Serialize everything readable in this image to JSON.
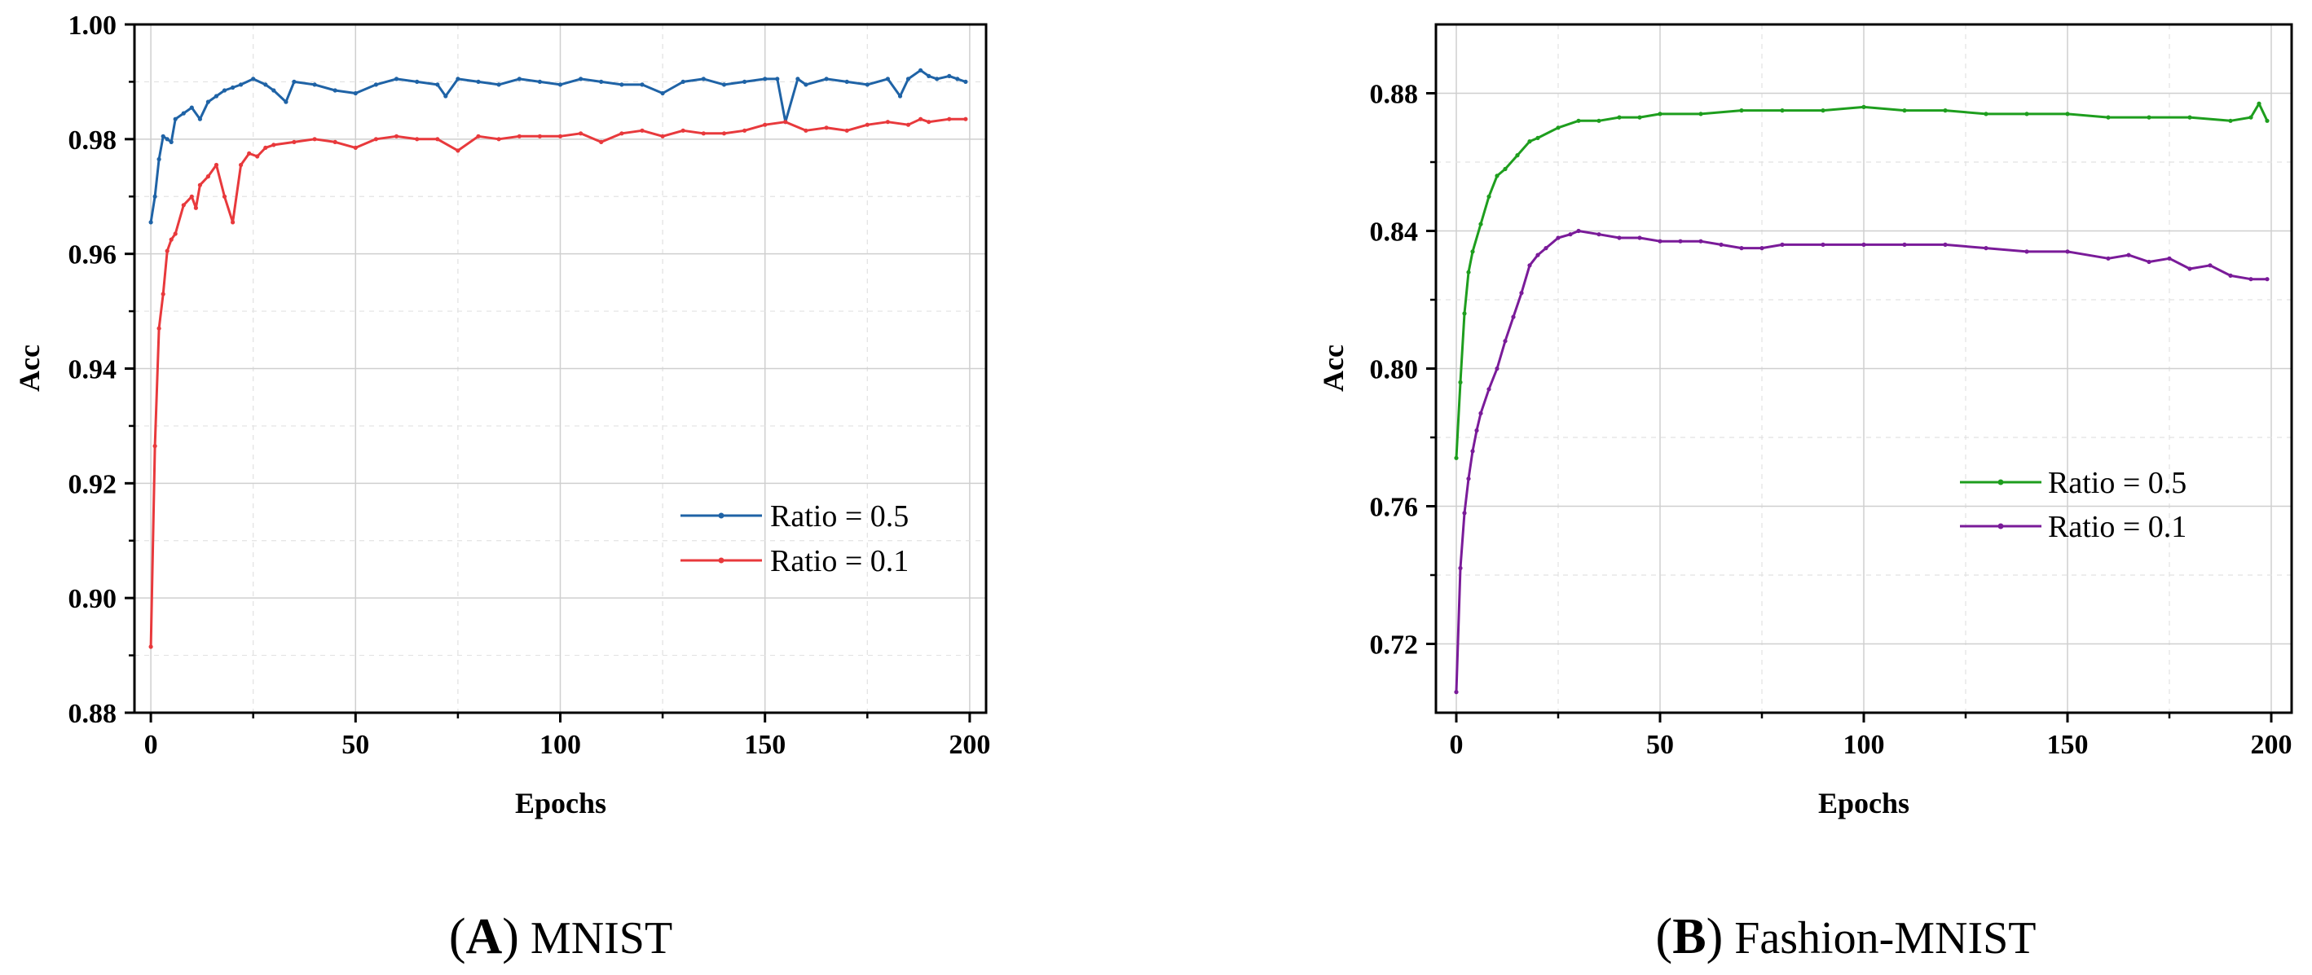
{
  "chart_data": [
    {
      "type": "line",
      "caption_letter": "A",
      "caption_text": "MNIST",
      "xlabel": "Epochs",
      "ylabel": "Acc",
      "xlim": [
        -4,
        204
      ],
      "ylim": [
        0.88,
        1.0
      ],
      "xticks": [
        "0",
        "50",
        "100",
        "150",
        "200"
      ],
      "yticks": [
        "0.88",
        "0.90",
        "0.92",
        "0.94",
        "0.96",
        "0.98",
        "1.00"
      ],
      "legend_position": "center-right",
      "series": [
        {
          "name": "Ratio = 0.5",
          "color": "#1f63a6",
          "points": [
            [
              0,
              0.9655
            ],
            [
              1,
              0.97
            ],
            [
              2,
              0.9765
            ],
            [
              3,
              0.9805
            ],
            [
              4,
              0.98
            ],
            [
              5,
              0.9795
            ],
            [
              6,
              0.9835
            ],
            [
              8,
              0.9845
            ],
            [
              10,
              0.9855
            ],
            [
              12,
              0.9835
            ],
            [
              14,
              0.9865
            ],
            [
              16,
              0.9875
            ],
            [
              18,
              0.9885
            ],
            [
              20,
              0.989
            ],
            [
              22,
              0.9895
            ],
            [
              25,
              0.9905
            ],
            [
              28,
              0.9895
            ],
            [
              30,
              0.9885
            ],
            [
              33,
              0.9865
            ],
            [
              35,
              0.99
            ],
            [
              40,
              0.9895
            ],
            [
              45,
              0.9885
            ],
            [
              50,
              0.988
            ],
            [
              55,
              0.9895
            ],
            [
              60,
              0.9905
            ],
            [
              65,
              0.99
            ],
            [
              70,
              0.9895
            ],
            [
              72,
              0.9875
            ],
            [
              75,
              0.9905
            ],
            [
              80,
              0.99
            ],
            [
              85,
              0.9895
            ],
            [
              90,
              0.9905
            ],
            [
              95,
              0.99
            ],
            [
              100,
              0.9895
            ],
            [
              105,
              0.9905
            ],
            [
              110,
              0.99
            ],
            [
              115,
              0.9895
            ],
            [
              120,
              0.9895
            ],
            [
              125,
              0.988
            ],
            [
              130,
              0.99
            ],
            [
              135,
              0.9905
            ],
            [
              140,
              0.9895
            ],
            [
              145,
              0.99
            ],
            [
              150,
              0.9905
            ],
            [
              153,
              0.9905
            ],
            [
              155,
              0.983
            ],
            [
              158,
              0.9905
            ],
            [
              160,
              0.9895
            ],
            [
              165,
              0.9905
            ],
            [
              170,
              0.99
            ],
            [
              175,
              0.9895
            ],
            [
              180,
              0.9905
            ],
            [
              183,
              0.9875
            ],
            [
              185,
              0.9905
            ],
            [
              188,
              0.992
            ],
            [
              190,
              0.991
            ],
            [
              192,
              0.9905
            ],
            [
              195,
              0.991
            ],
            [
              197,
              0.9905
            ],
            [
              199,
              0.99
            ]
          ]
        },
        {
          "name": "Ratio = 0.1",
          "color": "#e8393c",
          "points": [
            [
              0,
              0.8915
            ],
            [
              1,
              0.9265
            ],
            [
              2,
              0.947
            ],
            [
              3,
              0.953
            ],
            [
              4,
              0.9605
            ],
            [
              5,
              0.9625
            ],
            [
              6,
              0.9635
            ],
            [
              8,
              0.9685
            ],
            [
              10,
              0.97
            ],
            [
              11,
              0.968
            ],
            [
              12,
              0.972
            ],
            [
              14,
              0.9735
            ],
            [
              16,
              0.9755
            ],
            [
              18,
              0.97
            ],
            [
              20,
              0.9655
            ],
            [
              22,
              0.9755
            ],
            [
              24,
              0.9775
            ],
            [
              26,
              0.977
            ],
            [
              28,
              0.9785
            ],
            [
              30,
              0.979
            ],
            [
              35,
              0.9795
            ],
            [
              40,
              0.98
            ],
            [
              45,
              0.9795
            ],
            [
              50,
              0.9785
            ],
            [
              55,
              0.98
            ],
            [
              60,
              0.9805
            ],
            [
              65,
              0.98
            ],
            [
              70,
              0.98
            ],
            [
              75,
              0.978
            ],
            [
              80,
              0.9805
            ],
            [
              85,
              0.98
            ],
            [
              90,
              0.9805
            ],
            [
              95,
              0.9805
            ],
            [
              100,
              0.9805
            ],
            [
              105,
              0.981
            ],
            [
              110,
              0.9795
            ],
            [
              115,
              0.981
            ],
            [
              120,
              0.9815
            ],
            [
              125,
              0.9805
            ],
            [
              130,
              0.9815
            ],
            [
              135,
              0.981
            ],
            [
              140,
              0.981
            ],
            [
              145,
              0.9815
            ],
            [
              150,
              0.9825
            ],
            [
              155,
              0.983
            ],
            [
              160,
              0.9815
            ],
            [
              165,
              0.982
            ],
            [
              170,
              0.9815
            ],
            [
              175,
              0.9825
            ],
            [
              180,
              0.983
            ],
            [
              185,
              0.9825
            ],
            [
              188,
              0.9835
            ],
            [
              190,
              0.983
            ],
            [
              195,
              0.9835
            ],
            [
              199,
              0.9835
            ]
          ]
        }
      ]
    },
    {
      "type": "line",
      "caption_letter": "B",
      "caption_text": "Fashion-MNIST",
      "xlabel": "Epochs",
      "ylabel": "Acc",
      "xlim": [
        -5,
        205
      ],
      "ylim": [
        0.7,
        0.9
      ],
      "xticks": [
        "0",
        "50",
        "100",
        "150",
        "200"
      ],
      "yticks": [
        "0.72",
        "0.76",
        "0.80",
        "0.84",
        "0.88"
      ],
      "legend_position": "center-right",
      "series": [
        {
          "name": "Ratio = 0.5",
          "color": "#1e9e1e",
          "points": [
            [
              0,
              0.774
            ],
            [
              1,
              0.796
            ],
            [
              2,
              0.816
            ],
            [
              3,
              0.828
            ],
            [
              4,
              0.834
            ],
            [
              6,
              0.842
            ],
            [
              8,
              0.85
            ],
            [
              10,
              0.856
            ],
            [
              12,
              0.858
            ],
            [
              15,
              0.862
            ],
            [
              18,
              0.866
            ],
            [
              20,
              0.867
            ],
            [
              25,
              0.87
            ],
            [
              30,
              0.872
            ],
            [
              35,
              0.872
            ],
            [
              40,
              0.873
            ],
            [
              45,
              0.873
            ],
            [
              50,
              0.874
            ],
            [
              60,
              0.874
            ],
            [
              70,
              0.875
            ],
            [
              80,
              0.875
            ],
            [
              90,
              0.875
            ],
            [
              100,
              0.876
            ],
            [
              110,
              0.875
            ],
            [
              120,
              0.875
            ],
            [
              130,
              0.874
            ],
            [
              140,
              0.874
            ],
            [
              150,
              0.874
            ],
            [
              160,
              0.873
            ],
            [
              170,
              0.873
            ],
            [
              180,
              0.873
            ],
            [
              190,
              0.872
            ],
            [
              195,
              0.873
            ],
            [
              197,
              0.877
            ],
            [
              199,
              0.872
            ]
          ]
        },
        {
          "name": "Ratio = 0.1",
          "color": "#7a1b99",
          "points": [
            [
              0,
              0.706
            ],
            [
              1,
              0.742
            ],
            [
              2,
              0.758
            ],
            [
              3,
              0.768
            ],
            [
              4,
              0.776
            ],
            [
              5,
              0.782
            ],
            [
              6,
              0.787
            ],
            [
              8,
              0.794
            ],
            [
              10,
              0.8
            ],
            [
              12,
              0.808
            ],
            [
              14,
              0.815
            ],
            [
              16,
              0.822
            ],
            [
              18,
              0.83
            ],
            [
              20,
              0.833
            ],
            [
              22,
              0.835
            ],
            [
              25,
              0.838
            ],
            [
              28,
              0.839
            ],
            [
              30,
              0.84
            ],
            [
              35,
              0.839
            ],
            [
              40,
              0.838
            ],
            [
              45,
              0.838
            ],
            [
              50,
              0.837
            ],
            [
              55,
              0.837
            ],
            [
              60,
              0.837
            ],
            [
              65,
              0.836
            ],
            [
              70,
              0.835
            ],
            [
              75,
              0.835
            ],
            [
              80,
              0.836
            ],
            [
              90,
              0.836
            ],
            [
              100,
              0.836
            ],
            [
              110,
              0.836
            ],
            [
              120,
              0.836
            ],
            [
              130,
              0.835
            ],
            [
              140,
              0.834
            ],
            [
              150,
              0.834
            ],
            [
              160,
              0.832
            ],
            [
              165,
              0.833
            ],
            [
              170,
              0.831
            ],
            [
              175,
              0.832
            ],
            [
              180,
              0.829
            ],
            [
              185,
              0.83
            ],
            [
              190,
              0.827
            ],
            [
              195,
              0.826
            ],
            [
              199,
              0.826
            ]
          ]
        }
      ]
    }
  ]
}
